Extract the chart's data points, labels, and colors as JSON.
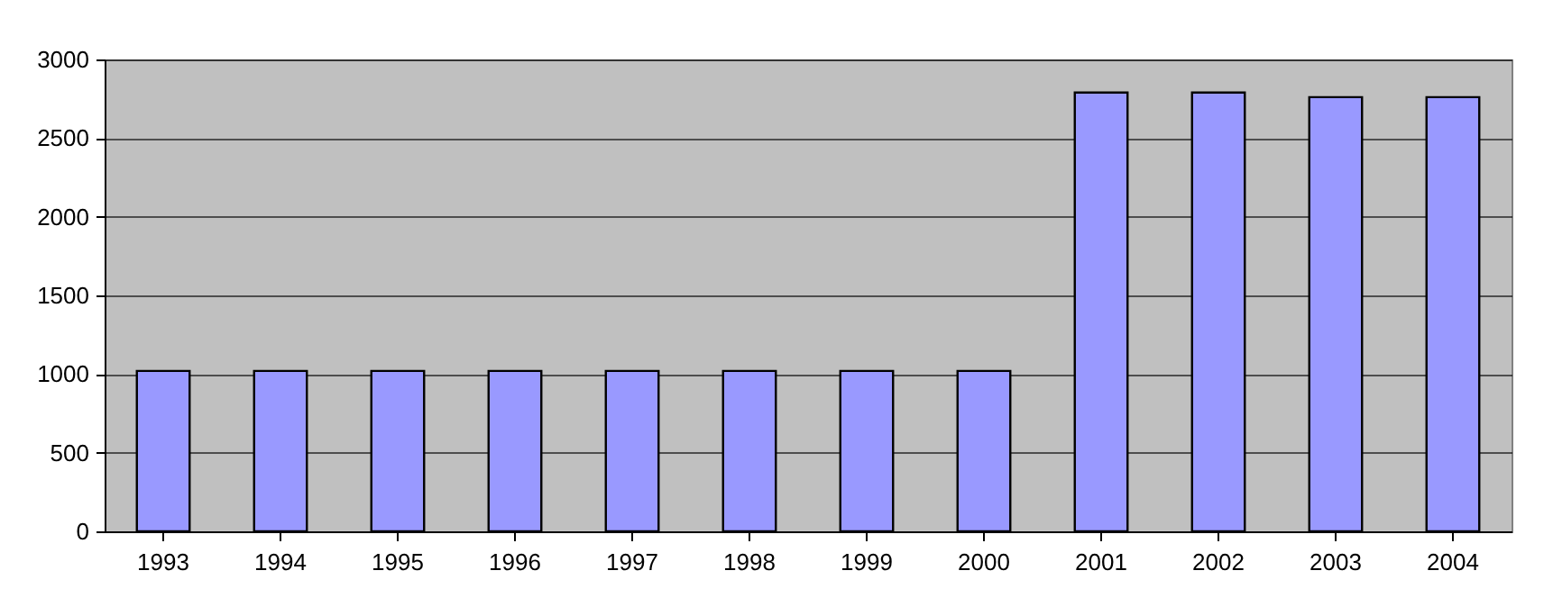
{
  "chart_data": {
    "type": "bar",
    "categories": [
      "1993",
      "1994",
      "1995",
      "1996",
      "1997",
      "1998",
      "1999",
      "2000",
      "2001",
      "2002",
      "2003",
      "2004"
    ],
    "values": [
      1020,
      1020,
      1020,
      1020,
      1020,
      1020,
      1020,
      1020,
      2790,
      2790,
      2760,
      2760
    ],
    "color": "#9999ff",
    "ylim": [
      0,
      3000
    ],
    "yticks": [
      0,
      500,
      1000,
      1500,
      2000,
      2500,
      3000
    ],
    "grid": "y"
  }
}
